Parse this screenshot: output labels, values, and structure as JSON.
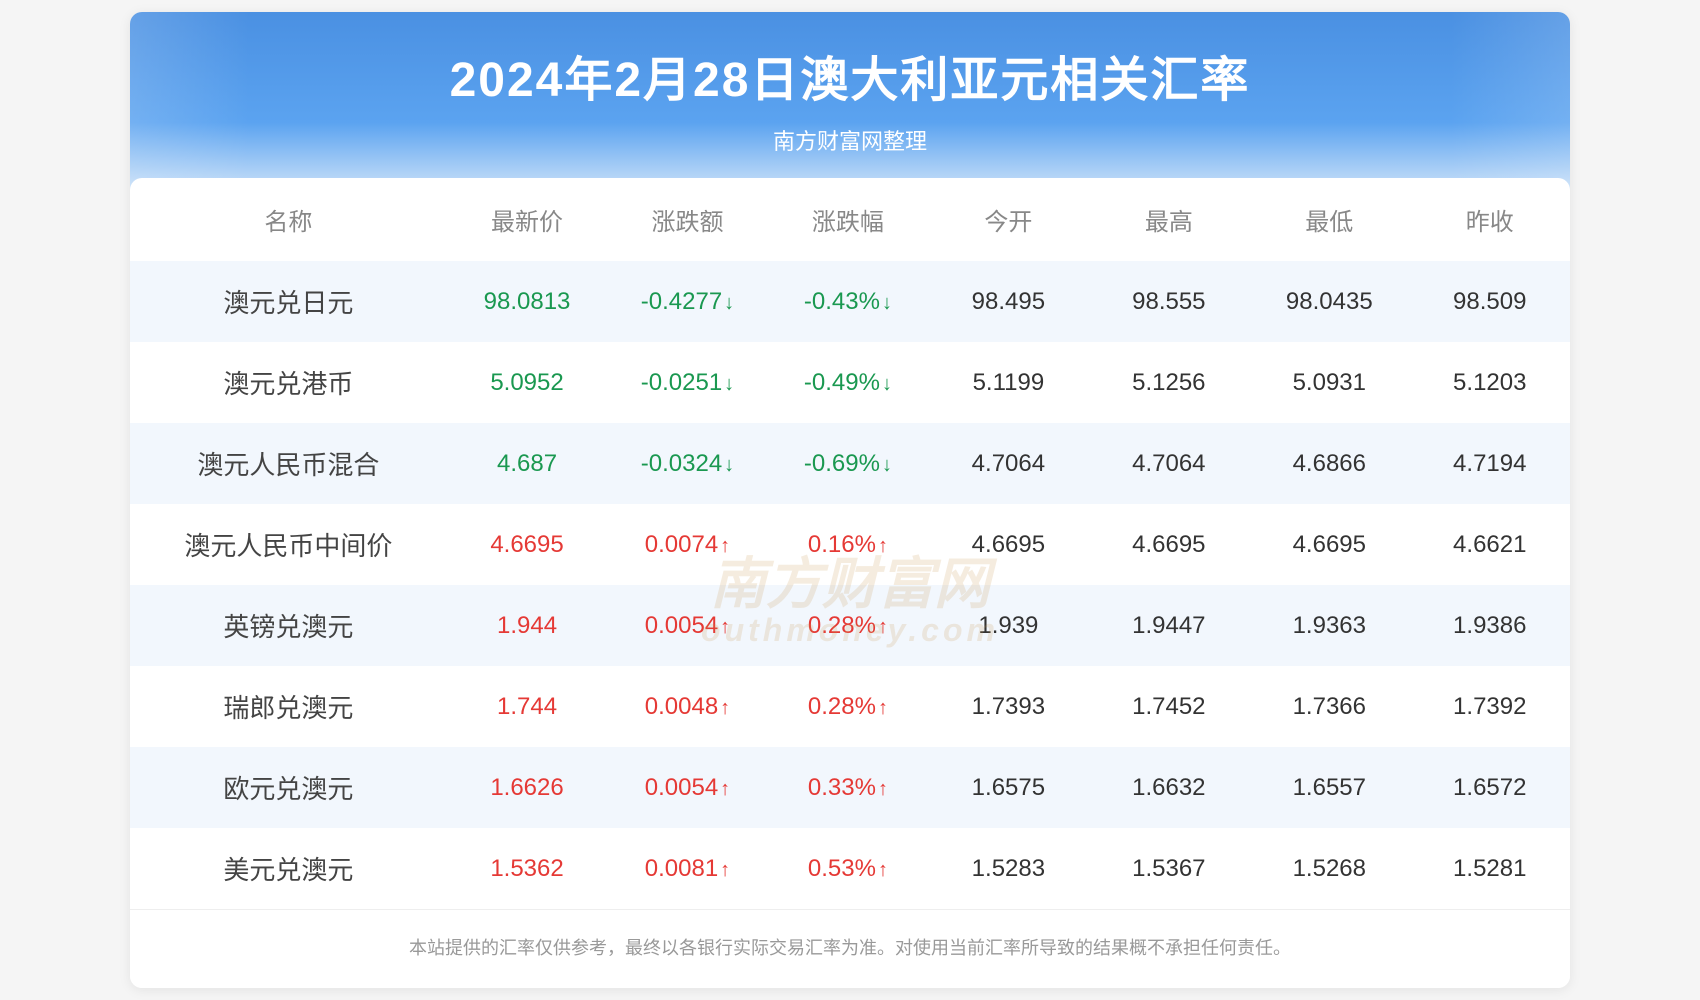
{
  "header": {
    "title": "2024年2月28日澳大利亚元相关汇率",
    "subtitle": "南方财富网整理"
  },
  "watermark": {
    "main": "南方财富网",
    "sub": "outhmoney.com"
  },
  "table": {
    "columns": [
      "名称",
      "最新价",
      "涨跌额",
      "涨跌幅",
      "今开",
      "最高",
      "最低",
      "昨收"
    ],
    "rows": [
      {
        "name": "澳元兑日元",
        "last": "98.0813",
        "chg": "-0.4277",
        "pct": "-0.43%",
        "dir": "down",
        "open": "98.495",
        "high": "98.555",
        "low": "98.0435",
        "prev": "98.509"
      },
      {
        "name": "澳元兑港币",
        "last": "5.0952",
        "chg": "-0.0251",
        "pct": "-0.49%",
        "dir": "down",
        "open": "5.1199",
        "high": "5.1256",
        "low": "5.0931",
        "prev": "5.1203"
      },
      {
        "name": "澳元人民币混合",
        "last": "4.687",
        "chg": "-0.0324",
        "pct": "-0.69%",
        "dir": "down",
        "open": "4.7064",
        "high": "4.7064",
        "low": "4.6866",
        "prev": "4.7194"
      },
      {
        "name": "澳元人民币中间价",
        "last": "4.6695",
        "chg": "0.0074",
        "pct": "0.16%",
        "dir": "up",
        "open": "4.6695",
        "high": "4.6695",
        "low": "4.6695",
        "prev": "4.6621"
      },
      {
        "name": "英镑兑澳元",
        "last": "1.944",
        "chg": "0.0054",
        "pct": "0.28%",
        "dir": "up",
        "open": "1.939",
        "high": "1.9447",
        "low": "1.9363",
        "prev": "1.9386"
      },
      {
        "name": "瑞郎兑澳元",
        "last": "1.744",
        "chg": "0.0048",
        "pct": "0.28%",
        "dir": "up",
        "open": "1.7393",
        "high": "1.7452",
        "low": "1.7366",
        "prev": "1.7392"
      },
      {
        "name": "欧元兑澳元",
        "last": "1.6626",
        "chg": "0.0054",
        "pct": "0.33%",
        "dir": "up",
        "open": "1.6575",
        "high": "1.6632",
        "low": "1.6557",
        "prev": "1.6572"
      },
      {
        "name": "美元兑澳元",
        "last": "1.5362",
        "chg": "0.0081",
        "pct": "0.53%",
        "dir": "up",
        "open": "1.5283",
        "high": "1.5367",
        "low": "1.5268",
        "prev": "1.5281"
      }
    ]
  },
  "disclaimer": "本站提供的汇率仅供参考，最终以各银行实际交易汇率为准。对使用当前汇率所导致的结果概不承担任何责任。",
  "colors": {
    "header_bg_top": "#4a90e2",
    "header_bg_bottom": "#d4e6f9",
    "row_alt": "#f2f7fd",
    "up": "#e53935",
    "down": "#1a9850",
    "text": "#333333",
    "muted": "#888888"
  }
}
